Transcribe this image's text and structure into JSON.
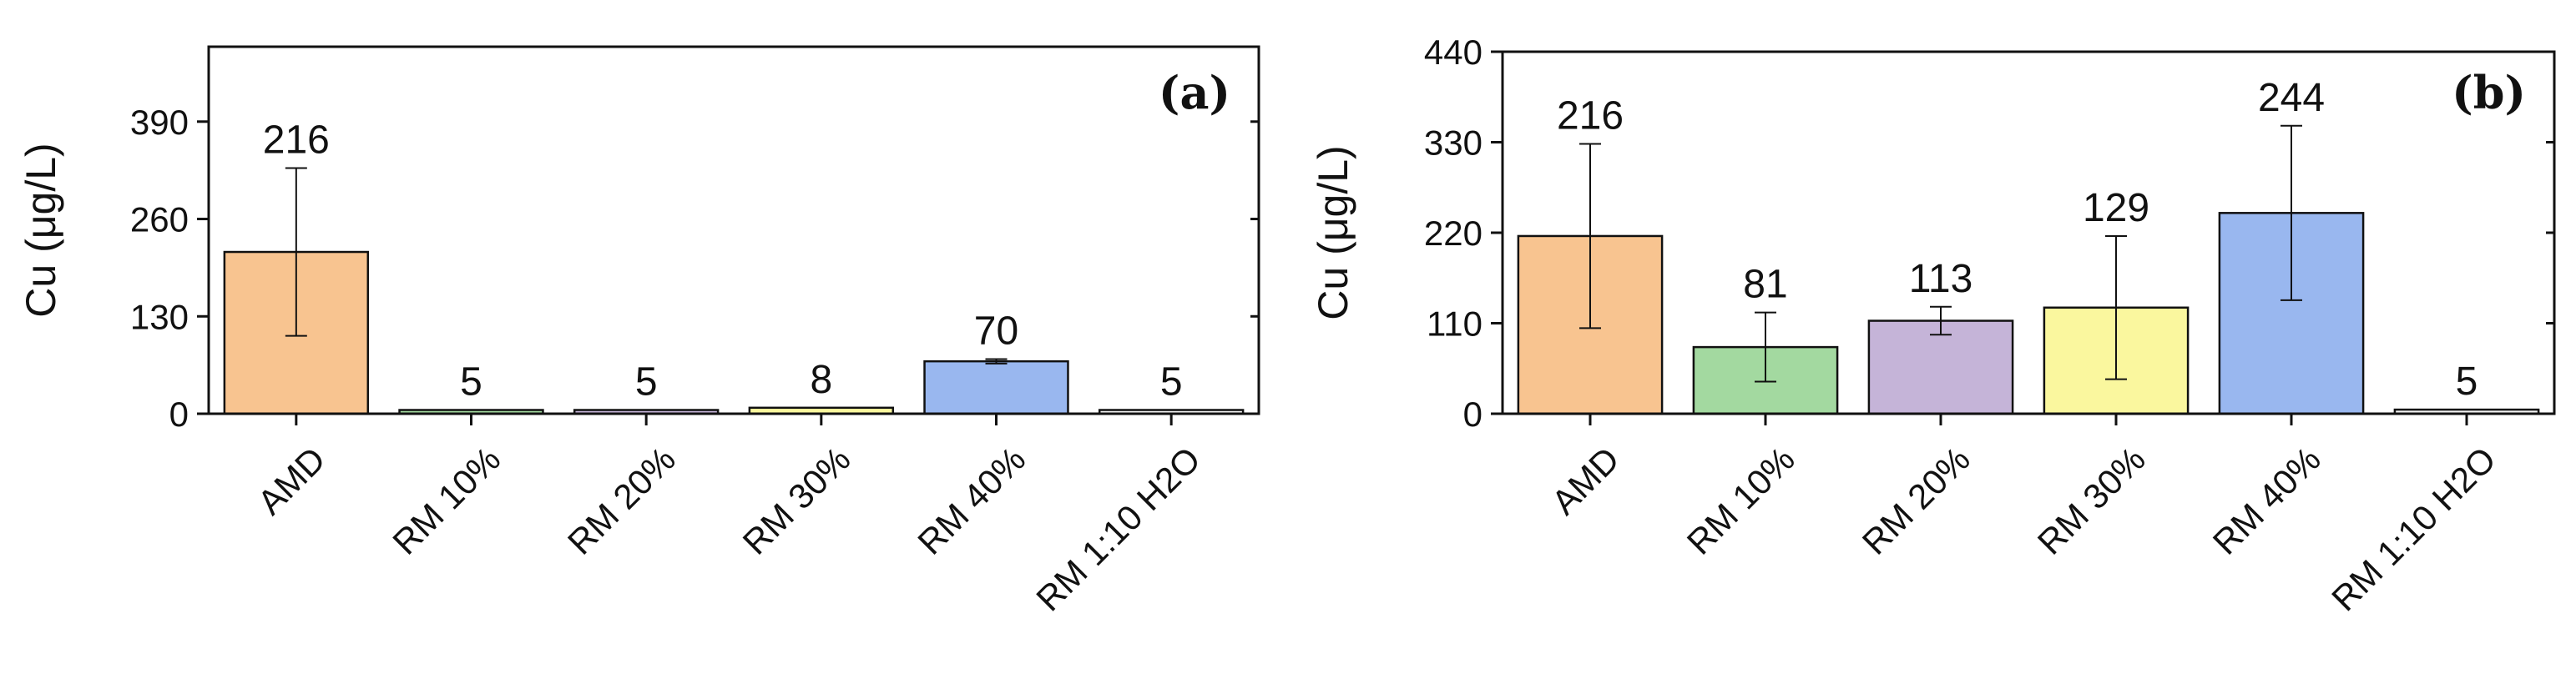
{
  "chart_data": [
    {
      "type": "bar",
      "panel_label": "(a)",
      "ylabel": "Cu (μg/L)",
      "xlabel": "",
      "categories": [
        "AMD",
        "RM 10%",
        "RM 20%",
        "RM 30%",
        "RM 40%",
        "RM 1:10 H2O"
      ],
      "values": [
        216,
        5,
        5,
        8,
        70,
        5
      ],
      "value_labels": [
        "216",
        "5",
        "5",
        "8",
        "70",
        "5"
      ],
      "error_bars": [
        112,
        0,
        0,
        0,
        3,
        0
      ],
      "colors": [
        "#f8c490",
        "#a3d9a0",
        "#c5b4d8",
        "#faf79e",
        "#99b7ef",
        "#f2f2f2"
      ],
      "ylim": [
        0,
        490
      ],
      "yticks": [
        0,
        130,
        260,
        390
      ],
      "ytick_labels": [
        "0",
        "130",
        "260",
        "390"
      ],
      "grid": false
    },
    {
      "type": "bar",
      "panel_label": "(b)",
      "ylabel": "Cu (μg/L)",
      "xlabel": "",
      "categories": [
        "AMD",
        "RM 10%",
        "RM 20%",
        "RM 30%",
        "RM 40%",
        "RM 1:10 H2O"
      ],
      "values": [
        216,
        81,
        113,
        129,
        244,
        5
      ],
      "value_labels": [
        "216",
        "81",
        "113",
        "129",
        "244",
        "5"
      ],
      "error_bars": [
        112,
        42,
        17,
        87,
        106,
        0
      ],
      "colors": [
        "#f8c490",
        "#a3d9a0",
        "#c5b4d8",
        "#faf79e",
        "#99b7ef",
        "#f2f2f2"
      ],
      "ylim": [
        0,
        440
      ],
      "yticks": [
        0,
        110,
        220,
        330,
        440
      ],
      "ytick_labels": [
        "0",
        "110",
        "220",
        "330",
        "440"
      ],
      "grid": false
    }
  ]
}
